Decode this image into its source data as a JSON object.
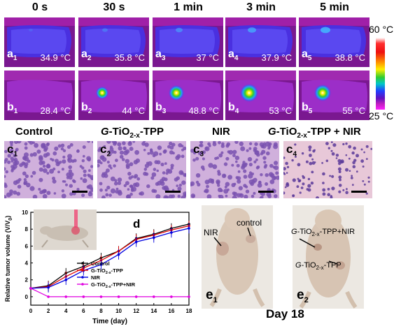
{
  "time_labels": [
    "0 s",
    "30 s",
    "1 min",
    "3 min",
    "5 min"
  ],
  "thermal_row_a": [
    {
      "letter": "a",
      "index": "1",
      "temp": "34.9 °C"
    },
    {
      "letter": "a",
      "index": "2",
      "temp": "35.8 °C"
    },
    {
      "letter": "a",
      "index": "3",
      "temp": "37 °C"
    },
    {
      "letter": "a",
      "index": "4",
      "temp": "37.9 °C"
    },
    {
      "letter": "a",
      "index": "5",
      "temp": "38.8 °C"
    }
  ],
  "thermal_row_b": [
    {
      "letter": "b",
      "index": "1",
      "temp": "28.4 °C"
    },
    {
      "letter": "b",
      "index": "2",
      "temp": "44 °C"
    },
    {
      "letter": "b",
      "index": "3",
      "temp": "48.8 °C"
    },
    {
      "letter": "b",
      "index": "4",
      "temp": "53 °C"
    },
    {
      "letter": "b",
      "index": "5",
      "temp": "55 °C"
    }
  ],
  "colorbar": {
    "max": "60 °C",
    "min": "25 °C"
  },
  "histology": [
    {
      "title_pre": "",
      "title_it": "",
      "title_main": "Control",
      "title_sub": "",
      "title_post": "",
      "letter": "c",
      "index": "1"
    },
    {
      "title_pre": "",
      "title_it": "G",
      "title_main": "-TiO",
      "title_sub": "2-x",
      "title_post": "-TPP",
      "letter": "c",
      "index": "2"
    },
    {
      "title_pre": "",
      "title_it": "",
      "title_main": "NIR",
      "title_sub": "",
      "title_post": "",
      "letter": "c",
      "index": "3"
    },
    {
      "title_pre": "",
      "title_it": "G",
      "title_main": "-TiO",
      "title_sub": "2-x",
      "title_post": "-TPP + NIR",
      "letter": "c",
      "index": "4"
    }
  ],
  "chart_data": {
    "type": "line",
    "panel_label": "d",
    "xlabel": "Time (day)",
    "ylabel": "Relative tumor volume (V/V",
    "ylabel_sub": "0",
    "ylabel_end": ")",
    "xlim": [
      0,
      18
    ],
    "ylim": [
      -1,
      10
    ],
    "x": [
      0,
      2,
      4,
      6,
      8,
      10,
      12,
      14,
      16,
      18
    ],
    "xticks": [
      "0",
      "2",
      "4",
      "6",
      "8",
      "10",
      "12",
      "14",
      "16",
      "18"
    ],
    "yticks": [
      "0",
      "2",
      "4",
      "6",
      "8",
      "10"
    ],
    "series": [
      {
        "name": "Control",
        "color": "#000000",
        "values": [
          1,
          1.3,
          2.8,
          3.6,
          4.6,
          5.4,
          6.9,
          7.4,
          8.1,
          8.6
        ]
      },
      {
        "name": "G-TiO2-x-TPP",
        "color": "#e00000",
        "values": [
          1,
          1.2,
          2.4,
          3.4,
          4.3,
          5.4,
          6.8,
          7.3,
          7.9,
          8.4
        ]
      },
      {
        "name": "NIR",
        "color": "#0000e0",
        "values": [
          1,
          1.1,
          2.0,
          3.1,
          3.8,
          5.0,
          6.5,
          7.0,
          7.6,
          8.1
        ]
      },
      {
        "name": "G-TiO2-x-TPP+NIR",
        "color": "#e000e0",
        "values": [
          1,
          0,
          0,
          0,
          0,
          0,
          0,
          0,
          0,
          0
        ]
      }
    ],
    "legend": [
      {
        "pre": "Control",
        "sub": "",
        "post": ""
      },
      {
        "pre": "G-TiO",
        "sub": "2-x",
        "post": "-TPP"
      },
      {
        "pre": "NIR",
        "sub": "",
        "post": ""
      },
      {
        "pre": "G-TiO",
        "sub": "2-x",
        "post": "-TPP+NIR"
      }
    ]
  },
  "mice": {
    "e1": {
      "letter": "e",
      "index": "1",
      "label_nir": "NIR",
      "label_control": "control"
    },
    "e2": {
      "letter": "e",
      "index": "2",
      "label_top_it": "G",
      "label_top_main": "-TiO",
      "label_top_sub": "2-x",
      "label_top_post": "-TPP+NIR",
      "label_bot_it": "G",
      "label_bot_main": "-TiO",
      "label_bot_sub": "2-x",
      "label_bot_post": "-TPP"
    },
    "day_label": "Day 18"
  }
}
